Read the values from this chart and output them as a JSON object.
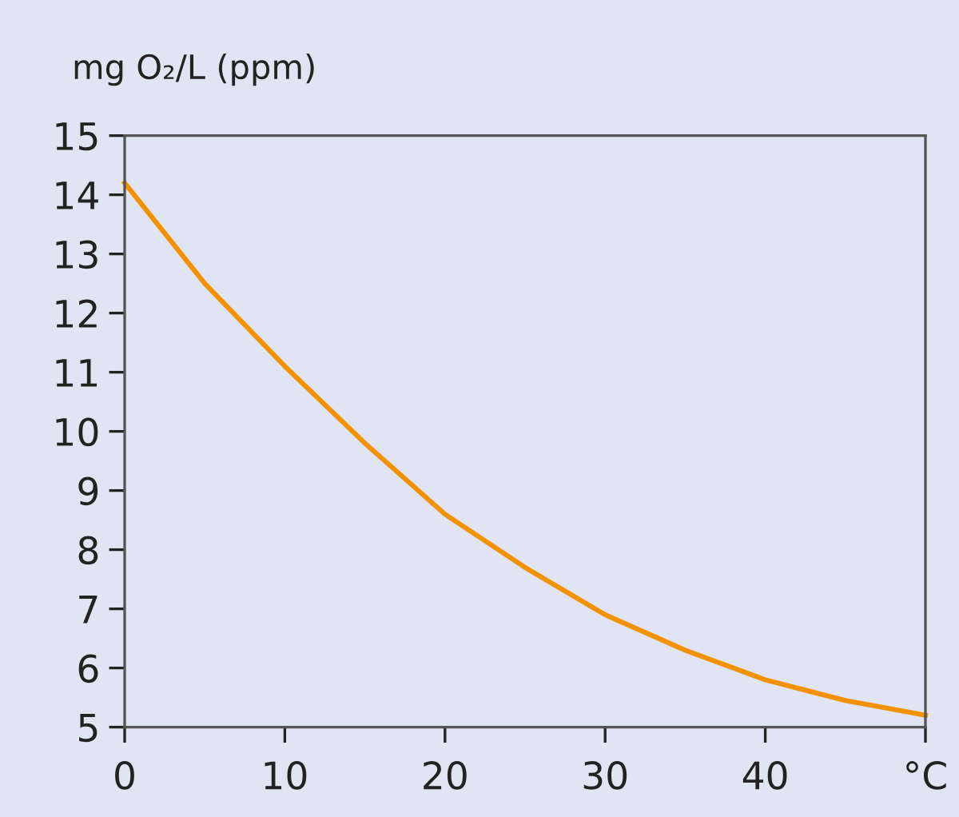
{
  "chart_data": {
    "type": "line",
    "ylabel": "mg O₂/L (ppm)",
    "x": [
      0,
      5,
      10,
      15,
      20,
      25,
      30,
      35,
      40,
      45,
      50
    ],
    "series": [
      {
        "color": "#f39200",
        "values": [
          14.2,
          12.5,
          11.1,
          9.8,
          8.6,
          7.7,
          6.9,
          6.3,
          5.8,
          5.45,
          5.2
        ]
      }
    ],
    "xlim": [
      0,
      50
    ],
    "xticks": [
      0,
      10,
      20,
      30,
      40,
      {
        "value": 50,
        "label": "°C"
      }
    ],
    "ylim": [
      5,
      15
    ],
    "yticks": [
      5,
      6,
      7,
      8,
      9,
      10,
      11,
      12,
      13,
      14,
      15
    ],
    "grid": false,
    "marker": "none",
    "line_style": "solid"
  }
}
